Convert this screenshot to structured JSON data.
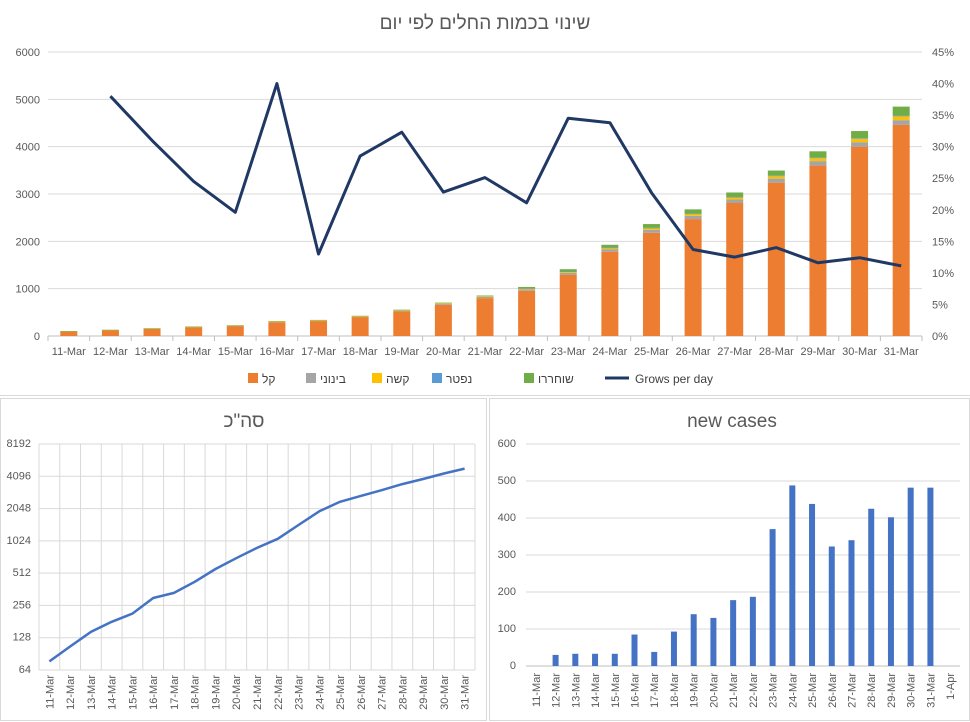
{
  "charts": {
    "top": {
      "type": "bar",
      "title": "שינוי בכמות החלים לפי יום",
      "categories": [
        "11-Mar",
        "12-Mar",
        "13-Mar",
        "14-Mar",
        "15-Mar",
        "16-Mar",
        "17-Mar",
        "18-Mar",
        "19-Mar",
        "20-Mar",
        "21-Mar",
        "22-Mar",
        "23-Mar",
        "24-Mar",
        "25-Mar",
        "26-Mar",
        "27-Mar",
        "28-Mar",
        "29-Mar",
        "30-Mar",
        "31-Mar"
      ],
      "ylim": [
        0,
        6000
      ],
      "yticks": [
        "0",
        "1000",
        "2000",
        "3000",
        "4000",
        "5000",
        "6000"
      ],
      "y2lim": [
        0,
        0.45
      ],
      "y2ticks": [
        "0%",
        "5%",
        "10%",
        "15%",
        "20%",
        "25%",
        "30%",
        "35%",
        "40%",
        "45%"
      ],
      "series": [
        {
          "name": "קל",
          "color": "#ED7D31",
          "values": [
            95,
            120,
            150,
            185,
            210,
            290,
            315,
            400,
            520,
            660,
            800,
            955,
            1290,
            1780,
            2180,
            2470,
            2810,
            3240,
            3600,
            4000,
            4460
          ]
        },
        {
          "name": "בינוני",
          "color": "#A5A5A5",
          "values": [
            4,
            5,
            6,
            6,
            8,
            10,
            10,
            12,
            15,
            20,
            25,
            30,
            45,
            55,
            65,
            70,
            75,
            85,
            95,
            95,
            100
          ]
        },
        {
          "name": "קשה",
          "color": "#FFC000",
          "values": [
            3,
            3,
            3,
            3,
            4,
            5,
            5,
            5,
            6,
            10,
            15,
            20,
            25,
            30,
            37,
            40,
            45,
            50,
            60,
            70,
            80
          ]
        },
        {
          "name": "נפטר",
          "color": "#5B9BD5",
          "values": [
            0,
            0,
            0,
            0,
            0,
            0,
            0,
            0,
            0,
            0,
            0,
            1,
            1,
            2,
            3,
            5,
            7,
            10,
            12,
            15,
            16
          ]
        },
        {
          "name": "שוחררו",
          "color": "#70AD47",
          "values": [
            2,
            4,
            5,
            5,
            5,
            10,
            10,
            10,
            15,
            15,
            15,
            30,
            50,
            60,
            80,
            90,
            95,
            110,
            135,
            150,
            190
          ]
        }
      ],
      "line": {
        "name": "Grows per day",
        "color": "#203864",
        "values": [
          null,
          0.38,
          0.31,
          0.245,
          0.196,
          0.4,
          0.13,
          0.285,
          0.323,
          0.228,
          0.251,
          0.211,
          0.345,
          0.338,
          0.227,
          0.137,
          0.125,
          0.14,
          0.116,
          0.124,
          0.111
        ]
      },
      "legend": "bottom"
    },
    "left": {
      "type": "line",
      "title": "סה\"כ",
      "scale": "log2",
      "categories": [
        "11-Mar",
        "12-Mar",
        "13-Mar",
        "14-Mar",
        "15-Mar",
        "16-Mar",
        "17-Mar",
        "18-Mar",
        "19-Mar",
        "20-Mar",
        "21-Mar",
        "22-Mar",
        "23-Mar",
        "24-Mar",
        "25-Mar",
        "26-Mar",
        "27-Mar",
        "28-Mar",
        "29-Mar",
        "30-Mar",
        "31-Mar"
      ],
      "yticks": [
        "64",
        "128",
        "256",
        "512",
        "1024",
        "2048",
        "4096",
        "8192"
      ],
      "ytick_values": [
        64,
        128,
        256,
        512,
        1024,
        2048,
        4096,
        8192
      ],
      "values": [
        77,
        106,
        145,
        180,
        215,
        300,
        335,
        425,
        560,
        705,
        880,
        1070,
        1440,
        1930,
        2370,
        2690,
        3035,
        3460,
        3865,
        4350,
        4830
      ],
      "color": "#4472C4",
      "grid": true
    },
    "right": {
      "type": "bar",
      "title": "new cases",
      "categories": [
        "11-Mar",
        "12-Mar",
        "13-Mar",
        "14-Mar",
        "15-Mar",
        "16-Mar",
        "17-Mar",
        "18-Mar",
        "19-Mar",
        "20-Mar",
        "21-Mar",
        "22-Mar",
        "23-Mar",
        "24-Mar",
        "25-Mar",
        "26-Mar",
        "27-Mar",
        "28-Mar",
        "29-Mar",
        "30-Mar",
        "31-Mar",
        "1-Apr"
      ],
      "ylim": [
        0,
        600
      ],
      "yticks": [
        "0",
        "100",
        "200",
        "300",
        "400",
        "500",
        "600"
      ],
      "values": [
        0,
        30,
        33,
        33,
        33,
        85,
        38,
        93,
        140,
        130,
        178,
        187,
        370,
        488,
        438,
        323,
        340,
        425,
        402,
        482,
        482,
        null
      ],
      "color": "#4472C4"
    }
  }
}
